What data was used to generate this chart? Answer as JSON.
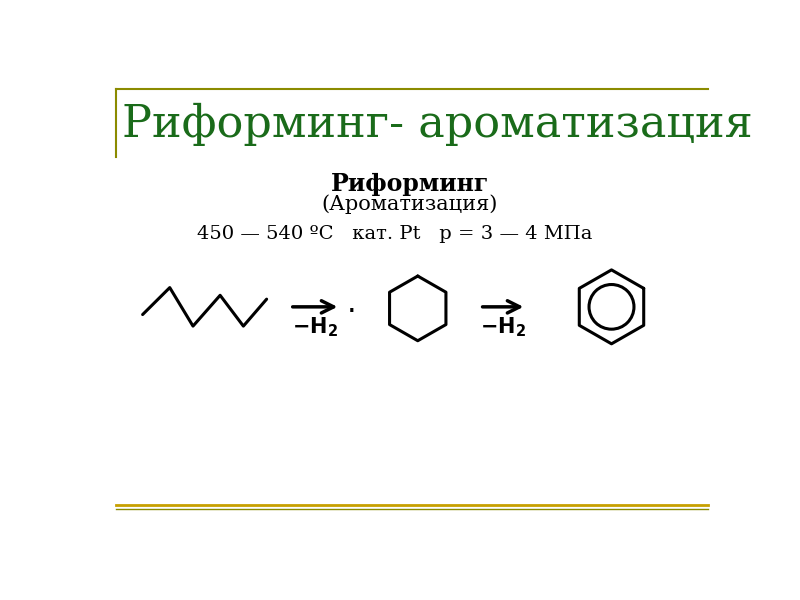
{
  "title": "Риформинг- ароматизация",
  "title_color": "#1a6b1a",
  "title_fontsize": 32,
  "bold_label": "Риформинг",
  "sub_label": "(Ароматизация)",
  "conditions": "450 — 540 ºC   кат. Pt   p = 3 — 4 МПа",
  "background_color": "#ffffff",
  "line_color": "#000000",
  "border_color_top": "#8b8b00",
  "border_color_bot": "#c8a000",
  "fig_width": 8.0,
  "fig_height": 6.0
}
